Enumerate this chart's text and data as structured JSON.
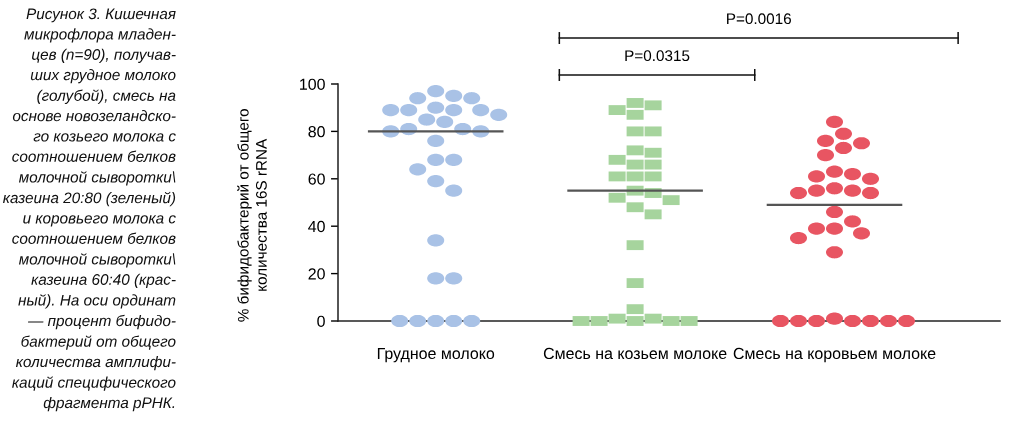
{
  "chart_data": {
    "type": "scatter",
    "categories": [
      "Грудное молоко",
      "Смесь на козьем молоке",
      "Смесь на коровьем молоке"
    ],
    "ylabel": "% бифидобактерий от общего\nколичества 16S rRNA",
    "ylim": [
      0,
      100
    ],
    "yticks": [
      0,
      20,
      40,
      60,
      80,
      100
    ],
    "series": [
      {
        "color": "#a9c2e6",
        "marker": "circle",
        "x": [
          "Грудное молоко",
          "Грудное молоко",
          "Грудное молоко",
          "Грудное молоко",
          "Грудное молоко",
          "Грудное молоко",
          "Грудное молоко",
          "Грудное молоко",
          "Грудное молоко",
          "Грудное молоко",
          "Грудное молоко",
          "Грудное молоко",
          "Грудное молоко",
          "Грудное молоко",
          "Грудное молоко",
          "Грудное молоко",
          "Грудное молоко",
          "Грудное молоко",
          "Грудное молоко",
          "Грудное молоко",
          "Грудное молоко",
          "Грудное молоко",
          "Грудное молоко",
          "Грудное молоко",
          "Грудное молоко",
          "Грудное молоко",
          "Грудное молоко",
          "Грудное молоко",
          "Грудное молоко",
          "Грудное молоко"
        ],
        "values": [
          97,
          95,
          94,
          94,
          90,
          89,
          89,
          89,
          89,
          87,
          85,
          84,
          81,
          81,
          80,
          80,
          76,
          68,
          68,
          64,
          59,
          55,
          34,
          18,
          18,
          0,
          0,
          0,
          0,
          0
        ]
      },
      {
        "color": "#a6d49d",
        "marker": "square",
        "x": [
          "Смесь на козьем молоке",
          "Смесь на козьем молоке",
          "Смесь на козьем молоке",
          "Смесь на козьем молоке",
          "Смесь на козьем молоке",
          "Смесь на козьем молоке",
          "Смесь на козьем молоке",
          "Смесь на козьем молоке",
          "Смесь на козьем молоке",
          "Смесь на козьем молоке",
          "Смесь на козьем молоке",
          "Смесь на козьем молоке",
          "Смесь на козьем молоке",
          "Смесь на козьем молоке",
          "Смесь на козьем молоке",
          "Смесь на козьем молоке",
          "Смесь на козьем молоке",
          "Смесь на козьем молоке",
          "Смесь на козьем молоке",
          "Смесь на козьем молоке",
          "Смесь на козьем молоке",
          "Смесь на козьем молоке",
          "Смесь на козьем молоке",
          "Смесь на козьем молоке",
          "Смесь на козьем молоке",
          "Смесь на козьем молоке",
          "Смесь на козьем молоке",
          "Смесь на козьем молоке",
          "Смесь на козьем молоке",
          "Смесь на козьем молоке"
        ],
        "values": [
          92,
          91,
          89,
          87,
          80,
          80,
          72,
          71,
          68,
          66,
          66,
          61,
          61,
          61,
          55,
          54,
          52,
          51,
          48,
          45,
          32,
          16,
          5,
          1,
          1,
          0,
          0,
          0,
          0,
          0
        ]
      },
      {
        "color": "#e85562",
        "marker": "circle",
        "x": [
          "Смесь на коровьем молоке",
          "Смесь на коровьем молоке",
          "Смесь на коровьем молоке",
          "Смесь на коровьем молоке",
          "Смесь на коровьем молоке",
          "Смесь на коровьем молоке",
          "Смесь на коровьем молоке",
          "Смесь на коровьем молоке",
          "Смесь на коровьем молоке",
          "Смесь на коровьем молоке",
          "Смесь на коровьем молоке",
          "Смесь на коровьем молоке",
          "Смесь на коровьем молоке",
          "Смесь на коровьем молоке",
          "Смесь на коровьем молоке",
          "Смесь на коровьем молоке",
          "Смесь на коровьем молоке",
          "Смесь на коровьем молоке",
          "Смесь на коровьем молоке",
          "Смесь на коровьем молоке",
          "Смесь на коровьем молоке",
          "Смесь на коровьем молоке",
          "Смесь на коровьем молоке",
          "Смесь на коровьем молоке",
          "Смесь на коровьем молоке",
          "Смесь на коровьем молоке",
          "Смесь на коровьем молоке",
          "Смесь на коровьем молоке",
          "Смесь на коровьем молоке",
          "Смесь на коровьем молоке"
        ],
        "values": [
          84,
          79,
          76,
          75,
          73,
          70,
          63,
          62,
          61,
          60,
          56,
          55,
          55,
          54,
          54,
          46,
          42,
          39,
          39,
          37,
          35,
          29,
          1,
          0,
          0,
          0,
          0,
          0,
          0,
          0
        ]
      }
    ],
    "ref_lines": [
      {
        "axis": "y",
        "value": 80,
        "color": "#555555"
      },
      {
        "axis": "y",
        "value": 55,
        "color": "#555555"
      },
      {
        "axis": "y",
        "value": 49,
        "color": "#555555"
      }
    ],
    "annotations": [
      "Рисунок 3. Кишечная\nмикрофлора младен-\nцев (n=90), получав-\nших грудное молоко\n(голубой), смесь на\nоснове новозеландско-\nго козьего молока с\nсоотношением белков\nмолочной сыворотки\\\nказеина 20:80 (зеленый)\nи коровьего молока с\nсоотношением белков\nмолочной сыворотки\\\nказеина 60:40 (крас-\nный). На оси ординат\n— процент бифидо-\nбактерий от общего\nколичества амплифи-\nкаций специфического\nфрагмента рРНК.",
      "P=0.0315",
      "P=0.0016"
    ]
  }
}
